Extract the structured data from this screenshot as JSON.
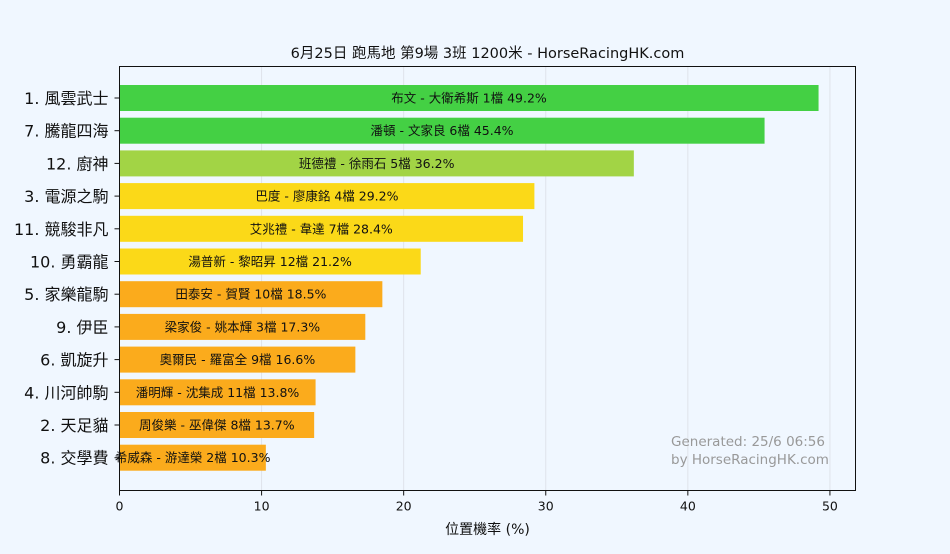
{
  "chart_data": {
    "type": "bar",
    "orientation": "horizontal",
    "title": "6月25日  跑馬地  第9場  3班  1200米 - HorseRacingHK.com",
    "xlabel": "位置機率 (%)",
    "ylabel": "",
    "xlim": [
      0,
      51.8
    ],
    "xticks": [
      0,
      10,
      20,
      30,
      40,
      50
    ],
    "grid": "vertical",
    "watermark": [
      "Generated: 25/6 06:56",
      "by HorseRacingHK.com"
    ],
    "categories": [
      "1. 風雲武士",
      "7. 騰龍四海",
      "12. 廚神",
      "3. 電源之駒",
      "11. 競駿非凡",
      "10. 勇霸龍",
      "5. 家樂龍駒",
      "9. 伊臣",
      "6. 凱旋升",
      "4. 川河帥駒",
      "2. 天足貓",
      "8. 交學費"
    ],
    "values": [
      49.2,
      45.4,
      36.2,
      29.2,
      28.4,
      21.2,
      18.5,
      17.3,
      16.6,
      13.8,
      13.7,
      10.3
    ],
    "bar_labels": [
      "布文 - 大衛希斯 1檔  49.2%",
      "潘頓 - 文家良 6檔  45.4%",
      "班德禮 - 徐雨石 5檔  36.2%",
      "巴度 - 廖康銘 4檔  29.2%",
      "艾兆禮 - 韋達 7檔  28.4%",
      "湯普新 - 黎昭昇 12檔  21.2%",
      "田泰安 - 賀賢 10檔  18.5%",
      "梁家俊 - 姚本輝 3檔  17.3%",
      "奧爾民 - 羅富全 9檔  16.6%",
      "潘明輝 - 沈集成 11檔  13.8%",
      "周俊樂 - 巫偉傑 8檔  13.7%",
      "希威森 - 游達榮 2檔  10.3%"
    ],
    "colors": [
      "#44d044",
      "#44d044",
      "#a2d445",
      "#fbd918",
      "#fbd918",
      "#fbd918",
      "#fbab1c",
      "#fbab1c",
      "#fbab1c",
      "#fbab1c",
      "#fbab1c",
      "#fbab1c"
    ]
  }
}
